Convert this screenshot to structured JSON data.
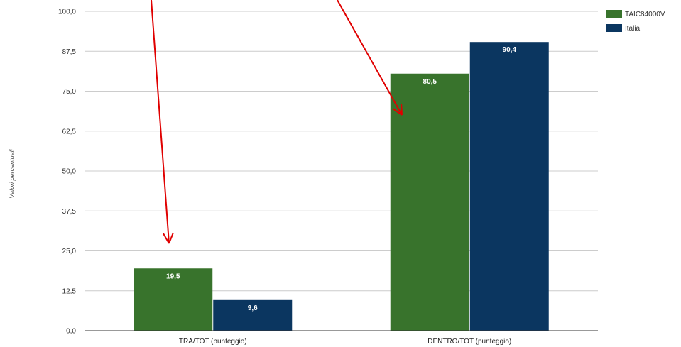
{
  "chart_data": {
    "type": "bar",
    "categories": [
      "TRA/TOT (punteggio)",
      "DENTRO/TOT (punteggio)"
    ],
    "series": [
      {
        "name": "TAIC84000V",
        "values": [
          19.5,
          80.5
        ],
        "labels": [
          "19,5",
          "80,5"
        ],
        "color": "#38732c"
      },
      {
        "name": "Italia",
        "values": [
          9.6,
          90.4
        ],
        "labels": [
          "9,6",
          "90,4"
        ],
        "color": "#0b3660"
      }
    ],
    "yticks": [
      "0,0",
      "12,5",
      "25,0",
      "37,5",
      "50,0",
      "62,5",
      "75,0",
      "87,5",
      "100,0"
    ],
    "ylim": [
      0,
      100
    ],
    "ylabel": "Valori percentuali",
    "grid": true,
    "legend": "top-right",
    "annotations": "red arrows pointing to bars",
    "arrow_color": "#e00000"
  }
}
